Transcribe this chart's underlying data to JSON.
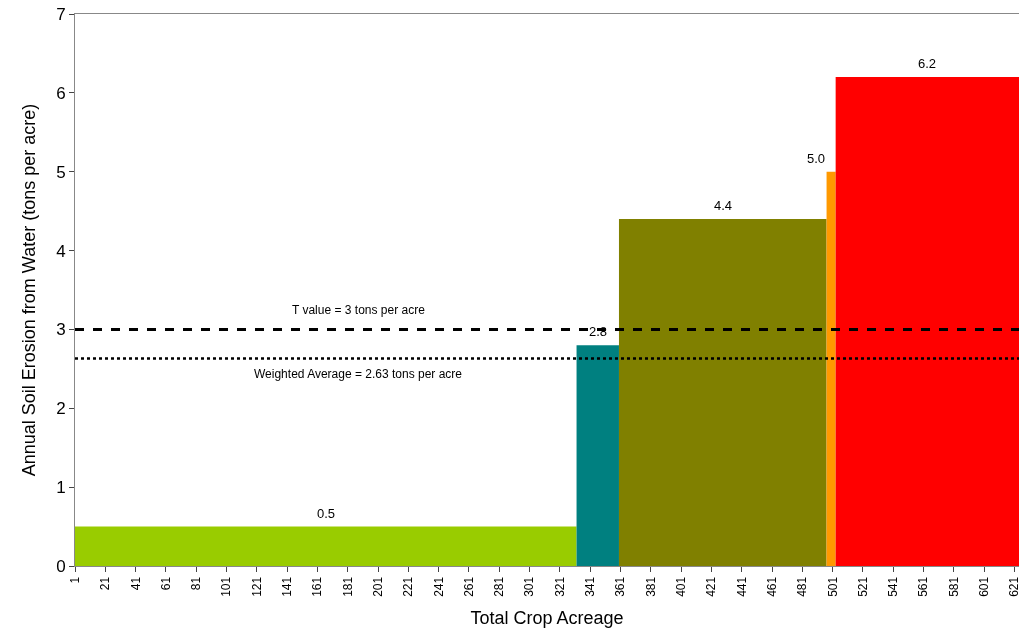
{
  "chart_data": {
    "type": "area",
    "xlabel": "Total Crop Acreage",
    "ylabel": "Annual Soil Erosion from Water (tons per acre)",
    "series": [
      {
        "color": "#99cc00",
        "x": [
          1,
          332
        ],
        "values": [
          0.5,
          0.5
        ]
      },
      {
        "color": "#008080",
        "x": [
          332,
          360
        ],
        "values": [
          2.8,
          2.8
        ]
      },
      {
        "color": "#808000",
        "x": [
          360,
          497
        ],
        "values": [
          4.4,
          4.4
        ]
      },
      {
        "color": "#ff9900",
        "x": [
          497,
          503
        ],
        "values": [
          5.0,
          5.0
        ]
      },
      {
        "color": "#ff0000",
        "x": [
          503,
          624
        ],
        "values": [
          6.2,
          6.2
        ]
      }
    ],
    "value_labels": [
      "0.5",
      "2.8",
      "4.4",
      "5.0",
      "6.2"
    ],
    "xlim": [
      1,
      624
    ],
    "xticks": [
      1,
      21,
      41,
      61,
      81,
      101,
      121,
      141,
      161,
      181,
      201,
      221,
      241,
      261,
      281,
      301,
      321,
      341,
      361,
      381,
      401,
      421,
      441,
      461,
      481,
      501,
      521,
      541,
      561,
      581,
      601,
      621
    ],
    "ylim": [
      0,
      7
    ],
    "yticks": [
      0,
      1,
      2,
      3,
      4,
      5,
      6,
      7
    ],
    "ref_lines": [
      {
        "axis": "y",
        "value": 3,
        "label": "T value = 3 tons per acre",
        "color": "#000000",
        "line_style": "dashed"
      },
      {
        "axis": "y",
        "value": 2.63,
        "label": "Weighted Average = 2.63 tons per acre",
        "color": "#000000",
        "line_style": "dotted"
      }
    ]
  }
}
